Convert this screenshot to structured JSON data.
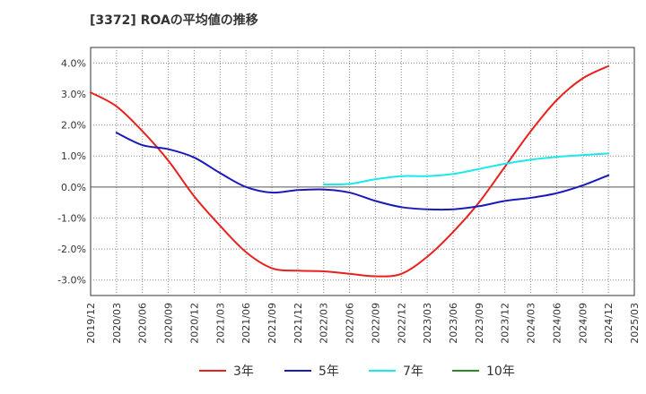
{
  "title": "[3372]  ROAの平均値の推移",
  "chart_data": {
    "type": "line",
    "title": "[3372]  ROAの平均値の推移",
    "xlabel": "",
    "ylabel": "",
    "x_ticks": [
      "2019/12",
      "2020/03",
      "2020/06",
      "2020/09",
      "2020/12",
      "2021/03",
      "2021/06",
      "2021/09",
      "2021/12",
      "2022/03",
      "2022/06",
      "2022/09",
      "2022/12",
      "2023/03",
      "2023/06",
      "2023/09",
      "2023/12",
      "2024/03",
      "2024/06",
      "2024/09",
      "2024/12",
      "2025/03"
    ],
    "y_ticks": [
      "4.0%",
      "3.0%",
      "2.0%",
      "1.0%",
      "0.0%",
      "-1.0%",
      "-2.0%",
      "-3.0%"
    ],
    "y_tick_values": [
      4.0,
      3.0,
      2.0,
      1.0,
      0.0,
      -1.0,
      -2.0,
      -3.0
    ],
    "ylim": [
      -3.5,
      4.5
    ],
    "grid": true,
    "legend_position": "bottom",
    "series": [
      {
        "name": "3年",
        "color": "#e8201e",
        "x": [
          "2019/12",
          "2020/03",
          "2020/06",
          "2020/09",
          "2020/12",
          "2021/03",
          "2021/06",
          "2021/09",
          "2021/12",
          "2022/03",
          "2022/06",
          "2022/09",
          "2022/12",
          "2023/03",
          "2023/06",
          "2023/09",
          "2023/12",
          "2024/03",
          "2024/06",
          "2024/09",
          "2024/12"
        ],
        "values": [
          3.05,
          2.6,
          1.8,
          0.85,
          -0.3,
          -1.25,
          -2.1,
          -2.62,
          -2.7,
          -2.72,
          -2.8,
          -2.88,
          -2.8,
          -2.25,
          -1.45,
          -0.5,
          0.65,
          1.8,
          2.8,
          3.5,
          3.9
        ]
      },
      {
        "name": "5年",
        "color": "#1a1ab8",
        "x": [
          "2020/03",
          "2020/06",
          "2020/09",
          "2020/12",
          "2021/03",
          "2021/06",
          "2021/09",
          "2021/12",
          "2022/03",
          "2022/06",
          "2022/09",
          "2022/12",
          "2023/03",
          "2023/06",
          "2023/09",
          "2023/12",
          "2024/03",
          "2024/06",
          "2024/09",
          "2024/12"
        ],
        "values": [
          1.75,
          1.35,
          1.22,
          0.95,
          0.45,
          0.0,
          -0.18,
          -0.1,
          -0.08,
          -0.18,
          -0.45,
          -0.65,
          -0.72,
          -0.72,
          -0.62,
          -0.45,
          -0.35,
          -0.2,
          0.05,
          0.38
        ]
      },
      {
        "name": "7年",
        "color": "#1de8e8",
        "x": [
          "2022/03",
          "2022/06",
          "2022/09",
          "2022/12",
          "2023/03",
          "2023/06",
          "2023/09",
          "2023/12",
          "2024/03",
          "2024/06",
          "2024/09",
          "2024/12"
        ],
        "values": [
          0.08,
          0.1,
          0.25,
          0.35,
          0.35,
          0.42,
          0.58,
          0.75,
          0.88,
          0.97,
          1.03,
          1.08
        ]
      },
      {
        "name": "10年",
        "color": "#2a8a2a",
        "x": [],
        "values": []
      }
    ]
  }
}
